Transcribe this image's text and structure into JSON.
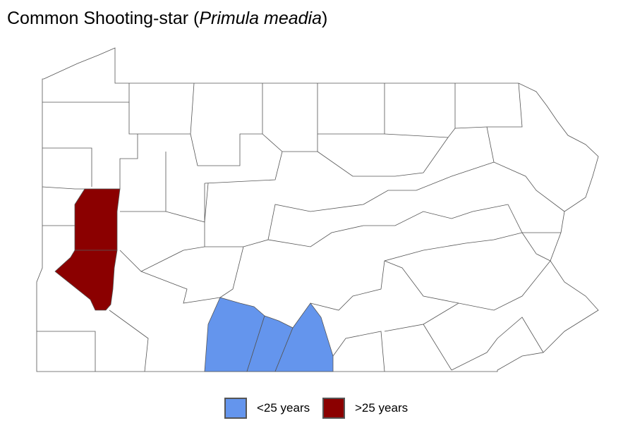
{
  "title": {
    "common_name": "Common Shooting-star (",
    "scientific_name": "Primula meadia",
    "close": ")"
  },
  "legend": [
    {
      "label": "<25 years",
      "color": "#6495ED"
    },
    {
      "label": ">25 years",
      "color": "#8B0000"
    }
  ],
  "map": {
    "region": "Pennsylvania counties",
    "outline_color": "#555555",
    "fill_default": "#FFFFFF"
  }
}
